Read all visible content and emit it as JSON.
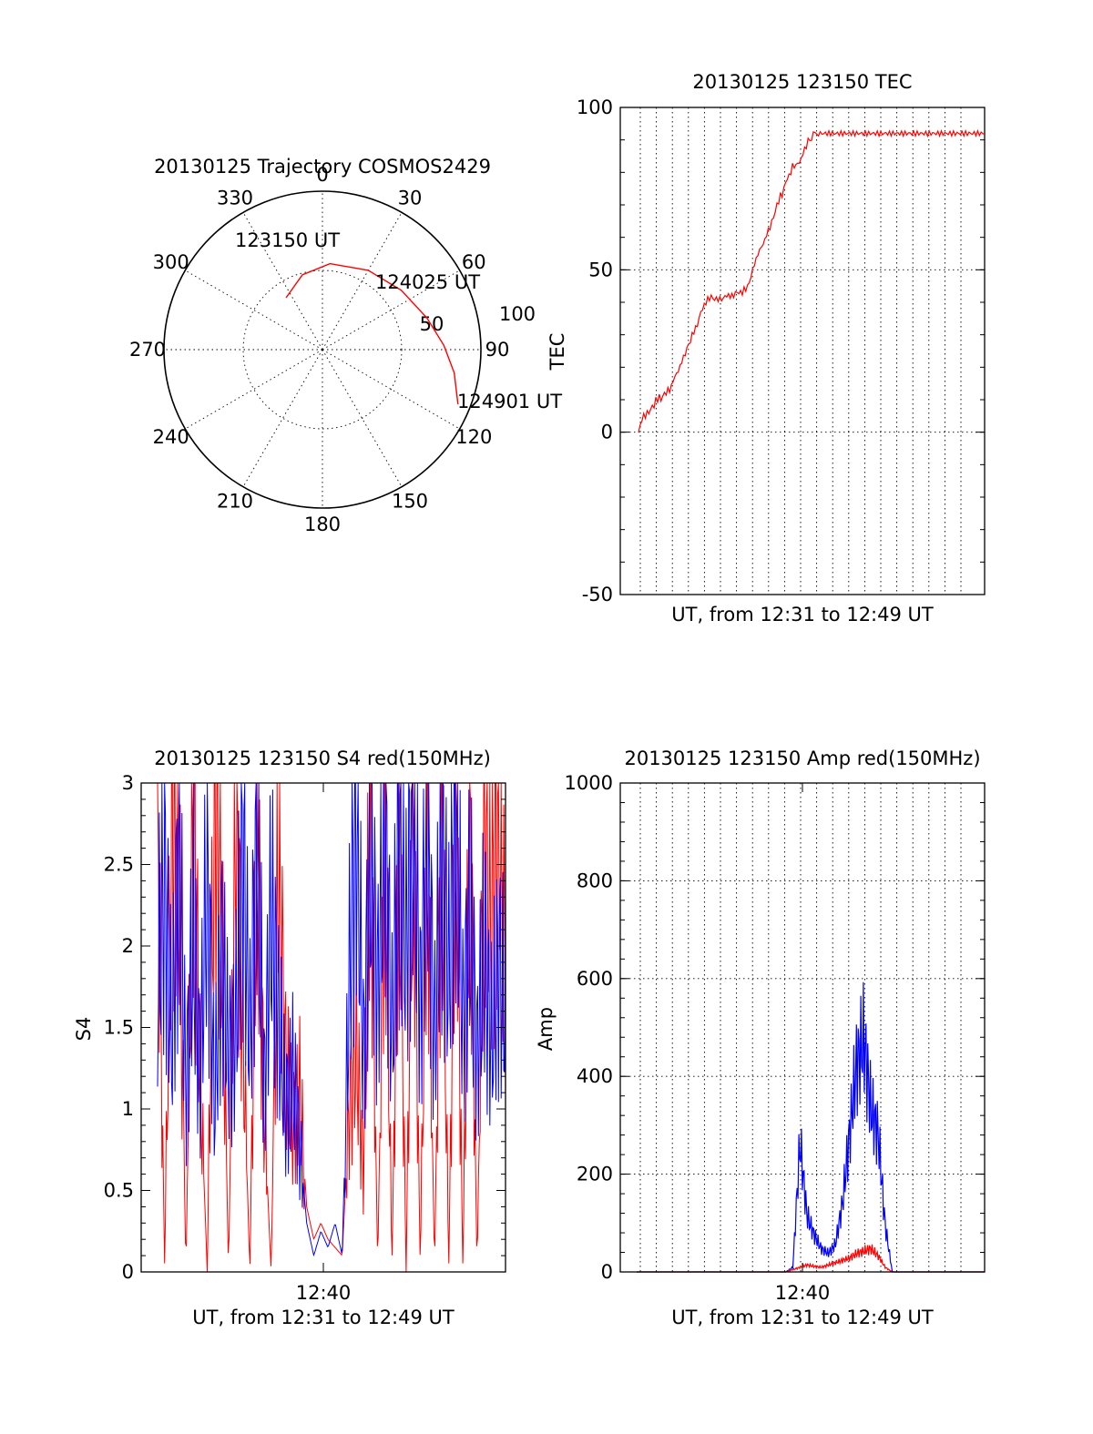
{
  "chart_data": [
    {
      "type": "scatter",
      "subtype": "polar",
      "title": "20130125 Trajectory COSMOS2429",
      "azimuth_labels": [
        "0",
        "30",
        "60",
        "90",
        "120",
        "150",
        "180",
        "210",
        "240",
        "270",
        "300",
        "330"
      ],
      "elevation_labels": [
        "50",
        "100"
      ],
      "series": [
        {
          "color": "#ff0000",
          "points": [
            {
              "az": 325,
              "el": 54
            },
            {
              "az": 345,
              "el": 46
            },
            {
              "az": 5,
              "el": 41
            },
            {
              "az": 30,
              "el": 38
            },
            {
              "az": 53,
              "el": 34
            },
            {
              "az": 73,
              "el": 28
            },
            {
              "az": 88,
              "el": 21
            },
            {
              "az": 100,
              "el": 14
            },
            {
              "az": 112,
              "el": 7
            }
          ]
        }
      ],
      "annotations": [
        "123150 UT",
        "124025 UT",
        "124901 UT"
      ]
    },
    {
      "type": "line",
      "title": "20130125 123150 TEC",
      "xlabel": "UT, from 12:31 to 12:49 UT",
      "ylabel": "TEC",
      "ylim": [
        -50,
        100
      ],
      "yticks": [
        "-50",
        "0",
        "50",
        "100"
      ],
      "grid": true,
      "series": [
        {
          "color": "#ff0000",
          "x": [
            0,
            0.5,
            1,
            1.5,
            2,
            2.5,
            3,
            3.5,
            4,
            4.5,
            5,
            5.5,
            6,
            6.5,
            7,
            7.5,
            8,
            8.5,
            9,
            9.5,
            10,
            10.5,
            11,
            11.5,
            12,
            12.5,
            13,
            13.5,
            14,
            14.5,
            15,
            15.5,
            16,
            16.5,
            17,
            17.5,
            18,
            18.5,
            19,
            19.5,
            20,
            20.5,
            21,
            21.5,
            22,
            22.5,
            23,
            23.5,
            24,
            24.5,
            25,
            25.5,
            26,
            26.5,
            27,
            27.5,
            28,
            28.5,
            29,
            29.5,
            30,
            30.5,
            31,
            31.5,
            32,
            32.5,
            33,
            33.5,
            34,
            34.5,
            35,
            35.5,
            36,
            36.5,
            37,
            37.5,
            38,
            38.5,
            39,
            39.5,
            40,
            40.5,
            41,
            41.5,
            42,
            42.5,
            43,
            43.5,
            44,
            44.5,
            45,
            45.5,
            46,
            46.5,
            47,
            47.5,
            48,
            48.5,
            49,
            49.5,
            50,
            50.5,
            51,
            51.5,
            52,
            52.5,
            53,
            53.5,
            54,
            54.5,
            55,
            55.5,
            56,
            56.5,
            57,
            57.5,
            58,
            58.5,
            59,
            59.5,
            60,
            60.5,
            61,
            61.5,
            62,
            62.5,
            63,
            63.5,
            64,
            64.5,
            65,
            65.5,
            66,
            66.5,
            67,
            67.5,
            68,
            68.5,
            69,
            69.5,
            70,
            70.5,
            71,
            71.5,
            72,
            72.5,
            73,
            73.5,
            74,
            74.5,
            75,
            75.5,
            76,
            76.5,
            77,
            77.5,
            78,
            78.5,
            79,
            79.5,
            80,
            80.5,
            81,
            81.5,
            82,
            82.5,
            83,
            83.5,
            84,
            84.5,
            85,
            85.5,
            86,
            86.5,
            87,
            87.5,
            88,
            88.5,
            89,
            89.5,
            90,
            90.5,
            91,
            91.5,
            92,
            92.5,
            93,
            93.5,
            94,
            94.5,
            95,
            95.5,
            96,
            96.5,
            97,
            97.5,
            98,
            98.5,
            99,
            99.5,
            100
          ],
          "y": [
            0,
            2,
            4,
            5,
            5,
            6,
            6,
            7,
            8,
            8,
            10,
            10,
            11,
            10,
            11,
            12,
            12,
            13,
            13,
            14,
            16,
            17,
            18,
            19,
            20,
            22,
            23,
            24,
            26,
            27,
            28,
            30,
            31,
            32,
            33,
            35,
            37,
            38,
            39,
            40,
            41,
            41,
            42,
            41,
            41,
            41,
            41,
            41,
            41,
            41,
            42,
            42,
            42,
            42,
            42,
            42,
            43,
            43,
            43,
            43,
            43,
            44,
            44,
            45,
            46,
            48,
            50,
            52,
            53,
            55,
            56,
            57,
            58,
            59,
            61,
            62,
            63,
            65,
            66,
            68,
            70,
            71,
            73,
            73,
            75,
            77,
            78,
            79,
            80,
            82,
            82,
            82,
            83,
            83,
            84,
            86,
            87,
            88,
            90,
            90,
            90,
            92,
            93,
            91,
            92,
            92,
            92,
            92,
            92,
            92,
            92,
            92,
            92,
            92,
            92,
            92,
            92,
            92,
            92,
            92,
            92,
            92,
            92,
            92,
            92,
            92,
            92,
            92,
            92,
            92,
            92,
            92,
            92,
            92,
            92,
            92,
            92,
            92,
            92,
            92,
            92,
            92,
            92,
            92,
            92,
            92,
            92,
            92,
            92,
            92,
            92,
            92,
            92,
            92,
            92,
            92,
            92,
            92,
            92,
            92,
            92,
            92,
            92,
            92,
            92,
            92,
            92,
            92,
            92,
            92,
            92,
            92,
            92,
            92,
            92,
            92,
            92,
            92,
            92,
            92,
            92,
            92,
            92,
            92,
            92,
            92,
            92,
            92,
            92,
            92,
            92,
            92,
            92,
            92,
            92,
            92,
            92,
            92,
            92,
            92,
            92
          ]
        }
      ]
    },
    {
      "type": "line",
      "title": "20130125 123150 S4 red(150MHz)",
      "xlabel": "UT, from 12:31 to 12:49 UT",
      "ylabel": "S4",
      "ylim": [
        0,
        3
      ],
      "yticks": [
        "0",
        "0.5",
        "1",
        "1.5",
        "2",
        "2.5",
        "3"
      ],
      "xticks": [
        "12:40"
      ],
      "series": [
        {
          "color": "#ff0000",
          "values": [
            3,
            0,
            3,
            2.5,
            0,
            3,
            1.2,
            0,
            3,
            2.2,
            0,
            3,
            1.5,
            0,
            2.8,
            1.0,
            0,
            2.6,
            1.3,
            0.9,
            1.1,
            0.4,
            0.2,
            0.3,
            0.2,
            0.15,
            0.1,
            1.0,
            1.4,
            0.6,
            3,
            0,
            3,
            0,
            2.9,
            0,
            3,
            0,
            3,
            0,
            3,
            0,
            3,
            0,
            3,
            0,
            3,
            2.1,
            3,
            1.8
          ]
        },
        {
          "color": "#0000ff",
          "values": [
            1.8,
            2.4,
            1.4,
            2.6,
            1.1,
            2.1,
            1.2,
            2.5,
            1.0,
            2.0,
            1.3,
            1.5,
            2.6,
            1.4,
            2.8,
            1.1,
            2.2,
            1.6,
            1.0,
            1.2,
            0.8,
            0.3,
            0.1,
            0.25,
            0.15,
            0.3,
            0.1,
            1.8,
            2.9,
            1.3,
            2.6,
            1.7,
            2.9,
            1.4,
            2.7,
            2.0,
            2.9,
            1.6,
            2.8,
            1.4,
            2.6,
            1.8,
            2.9,
            1.5,
            2.2,
            1.3,
            2.0,
            1.4,
            1.9,
            1.6
          ]
        }
      ]
    },
    {
      "type": "line",
      "title": "20130125 123150 Amp red(150MHz)",
      "xlabel": "UT, from 12:31 to 12:49 UT",
      "ylabel": "Amp",
      "ylim": [
        0,
        1000
      ],
      "yticks": [
        "0",
        "200",
        "400",
        "600",
        "800",
        "1000"
      ],
      "xticks": [
        "12:40"
      ],
      "grid": true,
      "series": [
        {
          "color": "#0000ff",
          "values": [
            0,
            0,
            0,
            0,
            0,
            0,
            0,
            0,
            0,
            0,
            0,
            0,
            0,
            0,
            0,
            0,
            0,
            0,
            0,
            0,
            0,
            0,
            10,
            280,
            120,
            80,
            50,
            40,
            60,
            150,
            300,
            450,
            500,
            350,
            300,
            100,
            0,
            0,
            0,
            0,
            0,
            0,
            0,
            0,
            0,
            0,
            0,
            0,
            0,
            0
          ]
        },
        {
          "color": "#ff0000",
          "values": [
            0,
            0,
            0,
            0,
            0,
            0,
            0,
            0,
            0,
            0,
            0,
            0,
            0,
            0,
            0,
            0,
            0,
            0,
            0,
            0,
            0,
            0,
            5,
            10,
            15,
            12,
            10,
            15,
            20,
            25,
            30,
            40,
            45,
            50,
            35,
            10,
            0,
            0,
            0,
            0,
            0,
            0,
            0,
            0,
            0,
            0,
            0,
            0,
            0,
            0
          ]
        }
      ]
    }
  ]
}
